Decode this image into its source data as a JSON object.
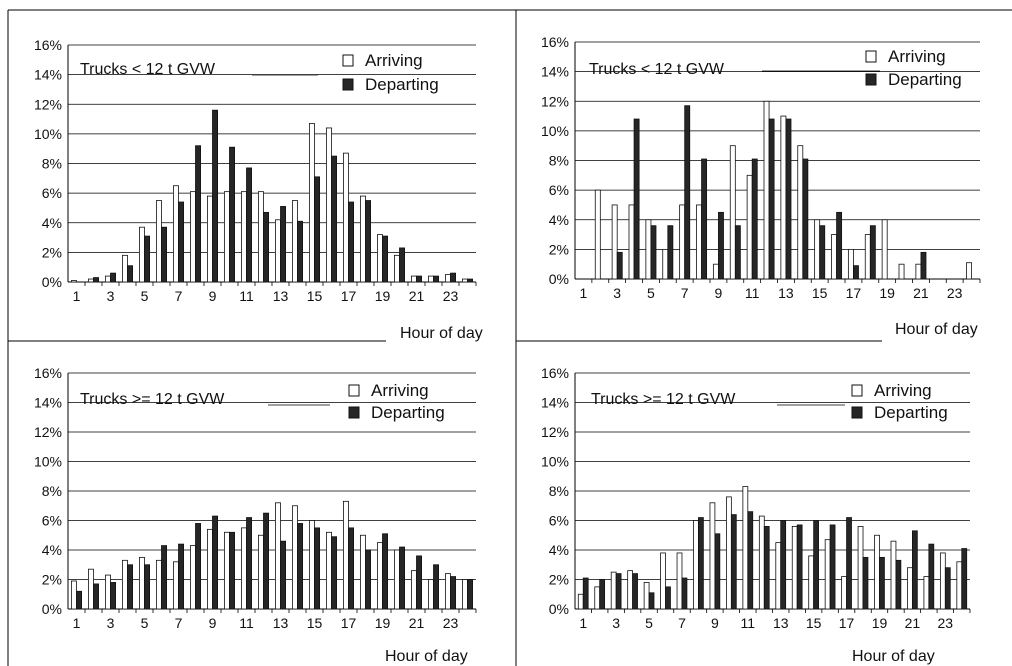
{
  "chart_data": [
    {
      "type": "bar",
      "title": "Trucks < 12 t GVW",
      "xlabel": "Hour of day",
      "ylim": [
        0,
        0.16
      ],
      "ytick_labels": [
        "0%",
        "2%",
        "4%",
        "6%",
        "8%",
        "10%",
        "12%",
        "14%",
        "16%"
      ],
      "xtick_labels": [
        "1",
        "3",
        "5",
        "7",
        "9",
        "11",
        "13",
        "15",
        "17",
        "19",
        "21",
        "23"
      ],
      "hours": [
        1,
        2,
        3,
        4,
        5,
        6,
        7,
        8,
        9,
        10,
        11,
        12,
        13,
        14,
        15,
        16,
        17,
        18,
        19,
        20,
        21,
        22,
        23,
        24
      ],
      "legend_position": "top-right",
      "series": [
        {
          "name": "Arriving",
          "color": "#ffffff",
          "values": [
            0.001,
            0.002,
            0.004,
            0.018,
            0.037,
            0.055,
            0.065,
            0.061,
            0.058,
            0.061,
            0.061,
            0.061,
            0.042,
            0.055,
            0.107,
            0.104,
            0.087,
            0.058,
            0.032,
            0.018,
            0.004,
            0.004,
            0.005,
            0.002
          ]
        },
        {
          "name": "Departing",
          "color": "#222222",
          "values": [
            0.0,
            0.003,
            0.006,
            0.011,
            0.031,
            0.037,
            0.054,
            0.092,
            0.116,
            0.091,
            0.077,
            0.047,
            0.051,
            0.041,
            0.071,
            0.085,
            0.054,
            0.055,
            0.031,
            0.023,
            0.004,
            0.004,
            0.006,
            0.002
          ]
        }
      ]
    },
    {
      "type": "bar",
      "title": "Trucks < 12 t GVW",
      "xlabel": "Hour of day",
      "ylim": [
        0,
        0.16
      ],
      "ytick_labels": [
        "0%",
        "2%",
        "4%",
        "6%",
        "8%",
        "10%",
        "12%",
        "14%",
        "16%"
      ],
      "xtick_labels": [
        "1",
        "3",
        "5",
        "7",
        "9",
        "11",
        "13",
        "15",
        "17",
        "19",
        "21",
        "23"
      ],
      "hours": [
        1,
        2,
        3,
        4,
        5,
        6,
        7,
        8,
        9,
        10,
        11,
        12,
        13,
        14,
        15,
        16,
        17,
        18,
        19,
        20,
        21,
        22,
        23,
        24
      ],
      "legend_position": "top-right",
      "series": [
        {
          "name": "Arriving",
          "color": "#ffffff",
          "values": [
            0.0,
            0.06,
            0.05,
            0.05,
            0.04,
            0.02,
            0.05,
            0.05,
            0.01,
            0.09,
            0.07,
            0.12,
            0.11,
            0.09,
            0.04,
            0.03,
            0.02,
            0.03,
            0.04,
            0.01,
            0.01,
            0.0,
            0.0,
            0.011
          ]
        },
        {
          "name": "Departing",
          "color": "#222222",
          "values": [
            0.0,
            0.0,
            0.018,
            0.108,
            0.036,
            0.036,
            0.117,
            0.081,
            0.045,
            0.036,
            0.081,
            0.108,
            0.108,
            0.081,
            0.036,
            0.045,
            0.009,
            0.036,
            0.0,
            0.0,
            0.018,
            0.0,
            0.0,
            0.0
          ]
        }
      ]
    },
    {
      "type": "bar",
      "title": "Trucks >= 12 t GVW",
      "xlabel": "Hour of day",
      "ylim": [
        0,
        0.16
      ],
      "ytick_labels": [
        "0%",
        "2%",
        "4%",
        "6%",
        "8%",
        "10%",
        "12%",
        "14%",
        "16%"
      ],
      "xtick_labels": [
        "1",
        "3",
        "5",
        "7",
        "9",
        "11",
        "13",
        "15",
        "17",
        "19",
        "21",
        "23"
      ],
      "hours": [
        1,
        2,
        3,
        4,
        5,
        6,
        7,
        8,
        9,
        10,
        11,
        12,
        13,
        14,
        15,
        16,
        17,
        18,
        19,
        20,
        21,
        22,
        23,
        24
      ],
      "legend_position": "top-right",
      "series": [
        {
          "name": "Arriving",
          "color": "#ffffff",
          "values": [
            0.019,
            0.027,
            0.023,
            0.033,
            0.035,
            0.033,
            0.032,
            0.043,
            0.054,
            0.052,
            0.055,
            0.05,
            0.072,
            0.07,
            0.06,
            0.052,
            0.073,
            0.05,
            0.045,
            0.04,
            0.026,
            0.02,
            0.024,
            0.02
          ]
        },
        {
          "name": "Departing",
          "color": "#222222",
          "values": [
            0.012,
            0.017,
            0.018,
            0.03,
            0.03,
            0.043,
            0.044,
            0.058,
            0.063,
            0.052,
            0.062,
            0.065,
            0.046,
            0.058,
            0.055,
            0.049,
            0.055,
            0.04,
            0.051,
            0.042,
            0.036,
            0.03,
            0.022,
            0.02
          ]
        }
      ]
    },
    {
      "type": "bar",
      "title": "Trucks >= 12 t GVW",
      "xlabel": "Hour of day",
      "ylim": [
        0,
        0.16
      ],
      "ytick_labels": [
        "0%",
        "2%",
        "4%",
        "6%",
        "8%",
        "10%",
        "12%",
        "14%",
        "16%"
      ],
      "xtick_labels": [
        "1",
        "3",
        "5",
        "7",
        "9",
        "11",
        "13",
        "15",
        "17",
        "19",
        "21",
        "23"
      ],
      "hours": [
        1,
        2,
        3,
        4,
        5,
        6,
        7,
        8,
        9,
        10,
        11,
        12,
        13,
        14,
        15,
        16,
        17,
        18,
        19,
        20,
        21,
        22,
        23,
        24
      ],
      "legend_position": "top-right",
      "series": [
        {
          "name": "Arriving",
          "color": "#ffffff",
          "values": [
            0.01,
            0.015,
            0.025,
            0.026,
            0.018,
            0.038,
            0.038,
            0.06,
            0.072,
            0.076,
            0.083,
            0.063,
            0.045,
            0.056,
            0.036,
            0.047,
            0.022,
            0.056,
            0.05,
            0.046,
            0.028,
            0.022,
            0.038,
            0.032
          ]
        },
        {
          "name": "Departing",
          "color": "#222222",
          "values": [
            0.021,
            0.02,
            0.024,
            0.024,
            0.011,
            0.015,
            0.021,
            0.062,
            0.051,
            0.064,
            0.066,
            0.056,
            0.06,
            0.057,
            0.06,
            0.057,
            0.062,
            0.035,
            0.035,
            0.033,
            0.053,
            0.044,
            0.028,
            0.041
          ]
        }
      ]
    }
  ]
}
